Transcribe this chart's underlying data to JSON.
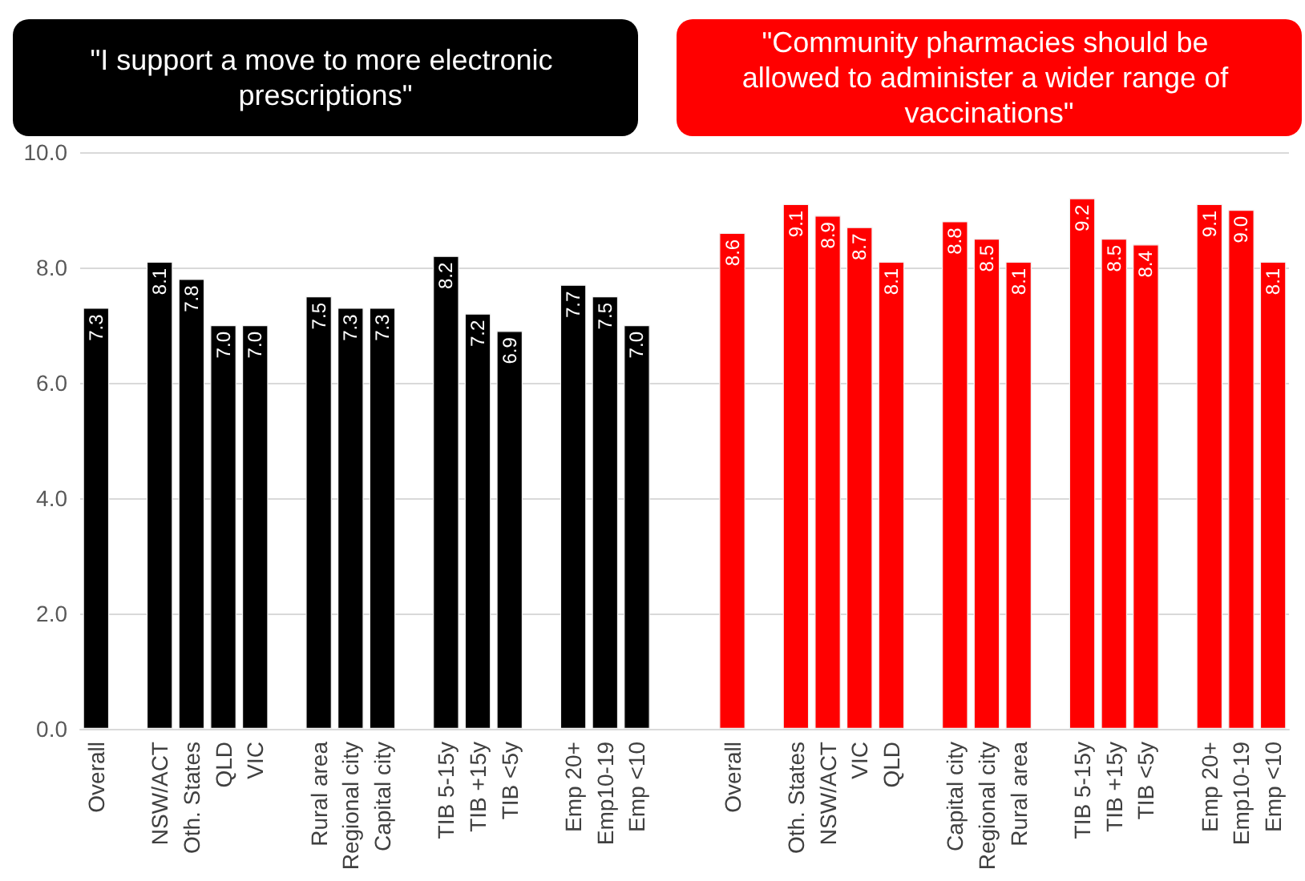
{
  "chart_data": {
    "type": "bar",
    "annotations": [
      "\"I support a move to more electronic prescriptions\"",
      "\"Community pharmacies should be allowed to administer a wider range of vaccinations\""
    ],
    "categories": [
      "Overall",
      null,
      "NSW/ACT",
      "Oth. States",
      "QLD",
      "VIC",
      null,
      "Rural area",
      "Regional city",
      "Capital city",
      null,
      "TIB 5-15y",
      "TIB +15y",
      "TIB <5y",
      null,
      "Emp 20+",
      "Emp10-19",
      "Emp <10",
      null,
      null,
      "Overall",
      null,
      "Oth. States",
      "NSW/ACT",
      "VIC",
      "QLD",
      null,
      "Capital city",
      "Regional city",
      "Rural area",
      null,
      "TIB 5-15y",
      "TIB +15y",
      "TIB <5y",
      null,
      "Emp 20+",
      "Emp10-19",
      "Emp <10"
    ],
    "series": [
      {
        "color": "#000000",
        "values": [
          7.3,
          null,
          8.1,
          7.8,
          7.0,
          7.0,
          null,
          7.5,
          7.3,
          7.3,
          null,
          8.2,
          7.2,
          6.9,
          null,
          7.7,
          7.5,
          7.0,
          null,
          null,
          null,
          null,
          null,
          null,
          null,
          null,
          null,
          null,
          null,
          null,
          null,
          null,
          null,
          null,
          null,
          null,
          null,
          null
        ],
        "value_labels": [
          "7.3",
          null,
          "8.1",
          "7.8",
          "7.0",
          "7.0",
          null,
          "7.5",
          "7.3",
          "7.3",
          null,
          "8.2",
          "7.2",
          "6.9",
          null,
          "7.7",
          "7.5",
          "7.0",
          null,
          null,
          null,
          null,
          null,
          null,
          null,
          null,
          null,
          null,
          null,
          null,
          null,
          null,
          null,
          null,
          null,
          null,
          null,
          null
        ]
      },
      {
        "color": "#ff0000",
        "values": [
          null,
          null,
          null,
          null,
          null,
          null,
          null,
          null,
          null,
          null,
          null,
          null,
          null,
          null,
          null,
          null,
          null,
          null,
          null,
          null,
          8.6,
          null,
          9.1,
          8.9,
          8.7,
          8.1,
          null,
          8.8,
          8.5,
          8.1,
          null,
          9.2,
          8.5,
          8.4,
          null,
          9.1,
          9.0,
          8.1
        ],
        "value_labels": [
          null,
          null,
          null,
          null,
          null,
          null,
          null,
          null,
          null,
          null,
          null,
          null,
          null,
          null,
          null,
          null,
          null,
          null,
          null,
          null,
          "8.6",
          null,
          "9.1",
          "8.9",
          "8.7",
          "8.1",
          null,
          "8.8",
          "8.5",
          "8.1",
          null,
          "9.2",
          "8.5",
          "8.4",
          null,
          "9.1",
          "9.0",
          "8.1"
        ]
      }
    ],
    "ylim": [
      0,
      10
    ],
    "yticks": [
      {
        "value": 0,
        "label": "0.0"
      },
      {
        "value": 2,
        "label": "2.0"
      },
      {
        "value": 4,
        "label": "4.0"
      },
      {
        "value": 6,
        "label": "6.0"
      },
      {
        "value": 8,
        "label": "8.0"
      },
      {
        "value": 10,
        "label": "10.0"
      }
    ],
    "grid": "y"
  }
}
